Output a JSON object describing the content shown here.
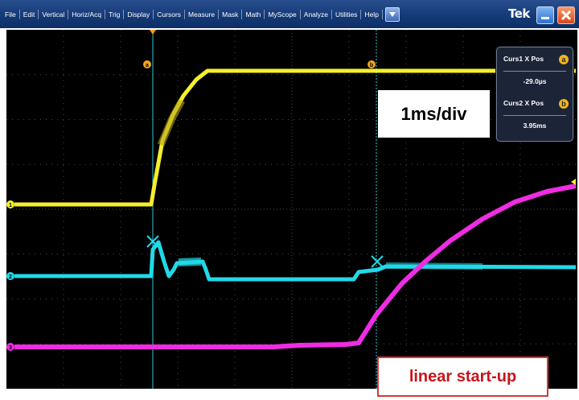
{
  "menu": {
    "items": [
      "File",
      "Edit",
      "Vertical",
      "Horiz/Acq",
      "Trig",
      "Display",
      "Cursors",
      "Measure",
      "Mask",
      "Math",
      "MyScope",
      "Analyze",
      "Utilities",
      "Help"
    ],
    "dropdown_icon": "dropdown-arrow-icon",
    "logo": "Tek",
    "minimize_icon": "minimize-icon",
    "close_icon": "close-x-icon"
  },
  "cursor_readout": {
    "curs1_label": "Curs1 X Pos",
    "curs1_badge": "a",
    "curs1_value": "-29.0µs",
    "curs2_label": "Curs2 X Pos",
    "curs2_badge": "b",
    "curs2_value": "3.95ms"
  },
  "waveform_markers": {
    "cursor_a": "a",
    "cursor_b": "b"
  },
  "channel_markers": {
    "ch1": "1",
    "ch2": "2",
    "ch3": "3"
  },
  "annotations": {
    "timebase": "1ms/div",
    "startup": "linear start-up"
  },
  "colors": {
    "background": "#000000",
    "graticule": "#4a4a4a",
    "ch1": "#f5ef2a",
    "ch2": "#21d9e8",
    "ch3": "#ef2ce3",
    "cursor": "#2fc7d4",
    "menu_bar": "#143a78"
  }
}
